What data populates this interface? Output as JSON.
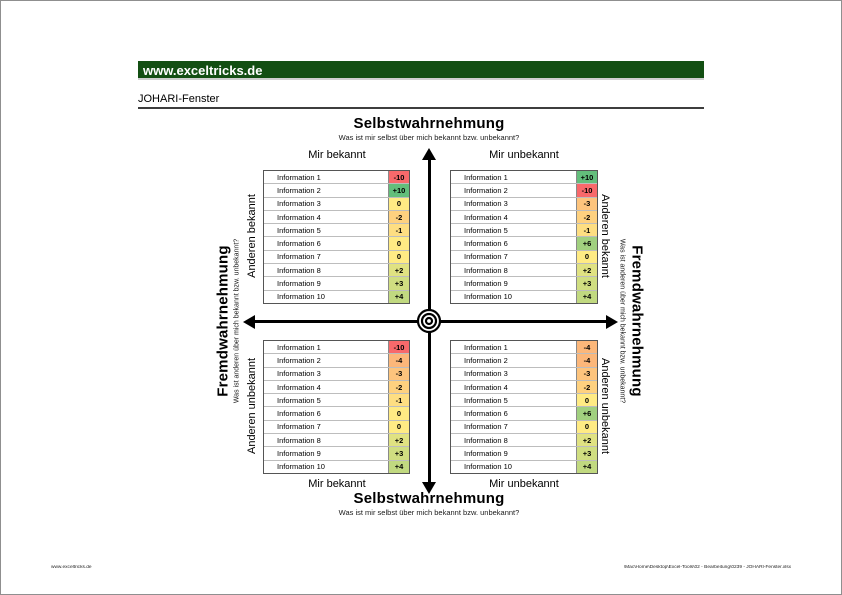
{
  "colors": {
    "banner_green": "#134F13",
    "scale_red": "#F8696B",
    "scale_yellow": "#FFEB84",
    "scale_green": "#63BE7B"
  },
  "header": {
    "banner_text": "www.exceltricks.de",
    "page_title": "JOHARI-Fenster"
  },
  "axis": {
    "self": {
      "title": "Selbstwahrnehmung",
      "question": "Was ist mir selbst über mich bekannt bzw. unbekannt?"
    },
    "fremd": {
      "title": "Fremdwahrnehmung",
      "question": "Was ist anderen über mich bekannt bzw. unbekannt?"
    }
  },
  "column_headers": {
    "left": "Mir bekannt",
    "right": "Mir unbekannt"
  },
  "row_headers": {
    "top": "Anderen bekannt",
    "bottom": "Anderen unbekannt"
  },
  "quadrants": {
    "top_left": {
      "rows": [
        {
          "label": "Information 1",
          "value": "-10",
          "color": "#F8696B"
        },
        {
          "label": "Information 2",
          "value": "+10",
          "color": "#63BE7B"
        },
        {
          "label": "Information 3",
          "value": "0",
          "color": "#FFEB84"
        },
        {
          "label": "Information 4",
          "value": "-2",
          "color": "#FED17F"
        },
        {
          "label": "Information 5",
          "value": "-1",
          "color": "#FEDE82"
        },
        {
          "label": "Information 6",
          "value": "0",
          "color": "#FFEB84"
        },
        {
          "label": "Information 7",
          "value": "0",
          "color": "#FFEB84"
        },
        {
          "label": "Information 8",
          "value": "+2",
          "color": "#E0E282"
        },
        {
          "label": "Information 9",
          "value": "+3",
          "color": "#D0DE81"
        },
        {
          "label": "Information 10",
          "value": "+4",
          "color": "#C1D980"
        }
      ]
    },
    "top_right": {
      "rows": [
        {
          "label": "Information 1",
          "value": "+10",
          "color": "#63BE7B"
        },
        {
          "label": "Information 2",
          "value": "-10",
          "color": "#F8696B"
        },
        {
          "label": "Information 3",
          "value": "-3",
          "color": "#FDC47D"
        },
        {
          "label": "Information 4",
          "value": "-2",
          "color": "#FED17F"
        },
        {
          "label": "Information 5",
          "value": "-1",
          "color": "#FEDE82"
        },
        {
          "label": "Information 6",
          "value": "+6",
          "color": "#A1D07F"
        },
        {
          "label": "Information 7",
          "value": "0",
          "color": "#FFEB84"
        },
        {
          "label": "Information 8",
          "value": "+2",
          "color": "#E0E282"
        },
        {
          "label": "Information 9",
          "value": "+3",
          "color": "#D0DE81"
        },
        {
          "label": "Information 10",
          "value": "+4",
          "color": "#C1D980"
        }
      ]
    },
    "bottom_left": {
      "rows": [
        {
          "label": "Information 1",
          "value": "-10",
          "color": "#F8696B"
        },
        {
          "label": "Information 2",
          "value": "-4",
          "color": "#FCB77A"
        },
        {
          "label": "Information 3",
          "value": "-3",
          "color": "#FDC47D"
        },
        {
          "label": "Information 4",
          "value": "-2",
          "color": "#FED17F"
        },
        {
          "label": "Information 5",
          "value": "-1",
          "color": "#FEDE82"
        },
        {
          "label": "Information 6",
          "value": "0",
          "color": "#FFEB84"
        },
        {
          "label": "Information 7",
          "value": "0",
          "color": "#FFEB84"
        },
        {
          "label": "Information 8",
          "value": "+2",
          "color": "#E0E282"
        },
        {
          "label": "Information 9",
          "value": "+3",
          "color": "#D0DE81"
        },
        {
          "label": "Information 10",
          "value": "+4",
          "color": "#C1D980"
        }
      ]
    },
    "bottom_right": {
      "rows": [
        {
          "label": "Information 1",
          "value": "-4",
          "color": "#FCB77A"
        },
        {
          "label": "Information 2",
          "value": "-4",
          "color": "#FCB77A"
        },
        {
          "label": "Information 3",
          "value": "-3",
          "color": "#FDC47D"
        },
        {
          "label": "Information 4",
          "value": "-2",
          "color": "#FED17F"
        },
        {
          "label": "Information 5",
          "value": "0",
          "color": "#FFEB84"
        },
        {
          "label": "Information 6",
          "value": "+6",
          "color": "#A1D07F"
        },
        {
          "label": "Information 7",
          "value": "0",
          "color": "#FFEB84"
        },
        {
          "label": "Information 8",
          "value": "+2",
          "color": "#E0E282"
        },
        {
          "label": "Information 9",
          "value": "+3",
          "color": "#D0DE81"
        },
        {
          "label": "Information 10",
          "value": "+4",
          "color": "#C1D980"
        }
      ]
    }
  },
  "footer": {
    "left": "www.exceltricks.de",
    "right": "\\Mac\\Home\\Desktop\\Excel-Tools\\02 - Bearbeitung\\0239 - JOHARI-Fenster.xlsx"
  }
}
